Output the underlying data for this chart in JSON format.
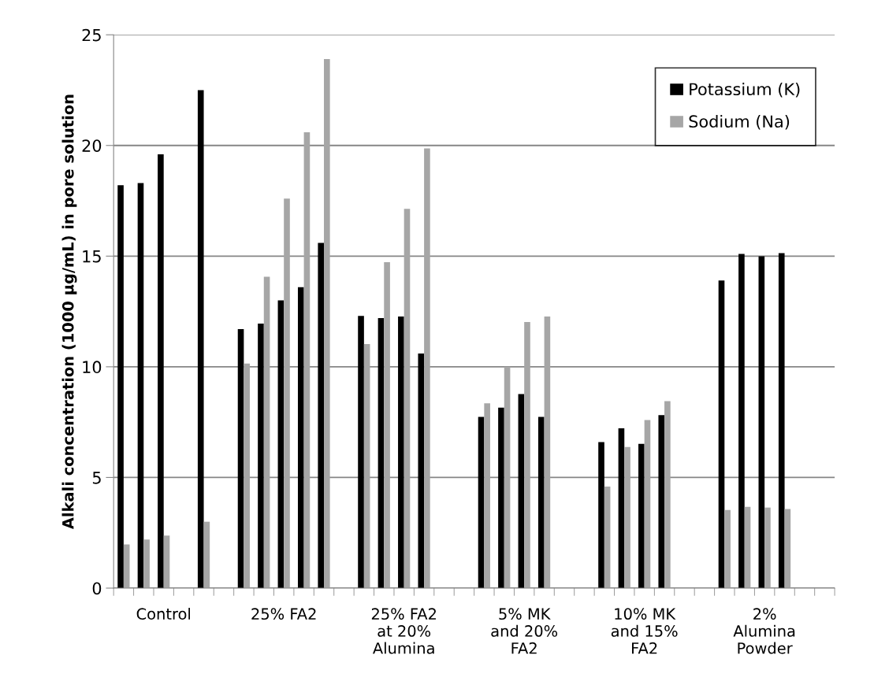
{
  "chart_data": {
    "type": "bar",
    "ylabel": "Alkali concentration (1000 µg/mL) in pore solution",
    "categories": [
      null,
      null,
      "Control",
      null,
      null,
      null,
      null,
      null,
      "25% FA2",
      null,
      null,
      null,
      null,
      null,
      "25% FA2\nat 20%\nAlumina",
      null,
      null,
      null,
      null,
      null,
      "5% MK\nand 20%\nFA2",
      null,
      null,
      null,
      null,
      null,
      "10% MK\nand 15%\nFA2",
      null,
      null,
      null,
      null,
      null,
      "2%\nAlumina\nPowder",
      null,
      null,
      null
    ],
    "series": [
      {
        "name": "Potassium (K)",
        "color": "#000000",
        "values": [
          18.2,
          18.3,
          19.6,
          null,
          22.5,
          null,
          11.7,
          11.95,
          13.0,
          13.6,
          15.6,
          null,
          12.3,
          12.2,
          12.27,
          10.6,
          null,
          null,
          7.74,
          8.15,
          8.77,
          7.74,
          null,
          null,
          6.6,
          7.22,
          6.52,
          7.82,
          null,
          null,
          13.9,
          15.1,
          14.99,
          15.14,
          null,
          null
        ]
      },
      {
        "name": "Sodium (Na)",
        "color": "#a6a6a6",
        "values": [
          1.97,
          2.2,
          2.37,
          null,
          3.0,
          null,
          10.15,
          14.07,
          17.6,
          20.6,
          23.9,
          null,
          11.03,
          14.73,
          17.14,
          19.87,
          null,
          null,
          8.35,
          10.0,
          12.02,
          12.27,
          null,
          null,
          4.59,
          6.38,
          7.59,
          8.45,
          null,
          null,
          3.53,
          3.67,
          3.64,
          3.57,
          null,
          null
        ]
      }
    ],
    "ylim": [
      0,
      25
    ],
    "yticks": [
      0,
      5,
      10,
      15,
      20,
      25
    ],
    "grid": "y",
    "legend": "top right"
  }
}
